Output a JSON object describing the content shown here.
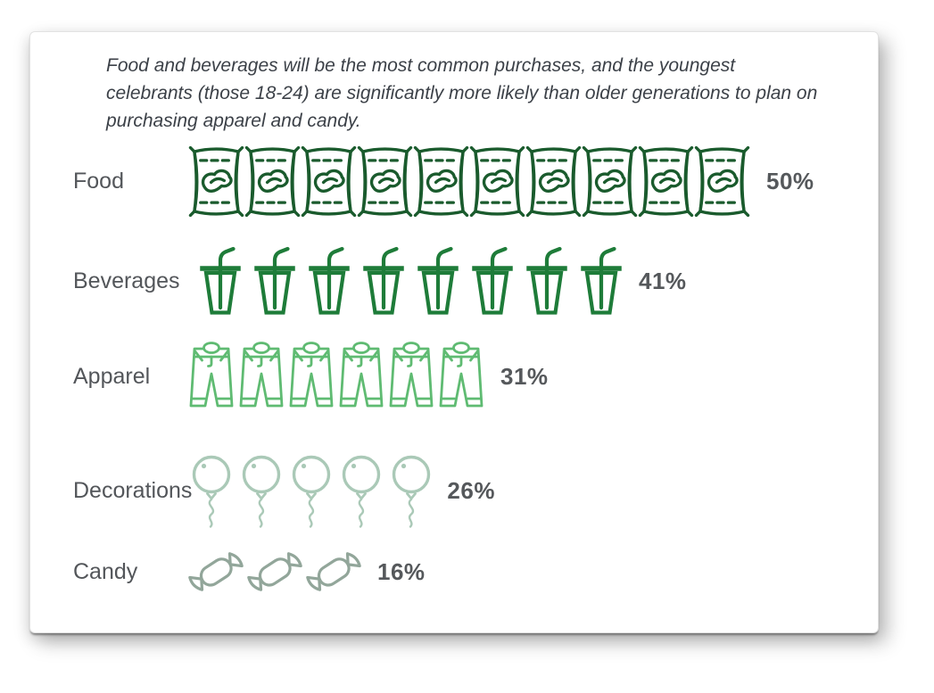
{
  "chart_data": {
    "type": "bar",
    "subtype": "pictograph",
    "title": "Food and beverages will be the most common purchases, and the youngest celebrants (those 18-24) are significantly more likely than older generations to plan on purchasing apparel and candy.",
    "categories": [
      "Food",
      "Beverages",
      "Apparel",
      "Decorations",
      "Candy"
    ],
    "values": [
      50,
      41,
      31,
      26,
      16
    ],
    "unit": "%",
    "icons_per_category": [
      10,
      8,
      6,
      5,
      3
    ],
    "icon_types": [
      "chip-bag",
      "drink-cup",
      "pants",
      "balloon",
      "candy"
    ],
    "icon_colors": [
      "#1a5b2d",
      "#1e7c39",
      "#5fbb72",
      "#aac9b7",
      "#92a69a"
    ],
    "legend_position": "none",
    "grid": false
  },
  "title": {
    "lines": [
      "Food and beverages will be the most common purchases, and the youngest",
      "celebrants (those 18-24) are significantly more likely than older generations to plan on",
      "purchasing apparel and candy."
    ]
  },
  "rows": [
    {
      "label": "Food",
      "percent": "50%",
      "icon": "chip-bag",
      "icon_count": 10,
      "color": "#1a5b2d"
    },
    {
      "label": "Beverages",
      "percent": "41%",
      "icon": "drink-cup",
      "icon_count": 8,
      "color": "#1e7c39"
    },
    {
      "label": "Apparel",
      "percent": "31%",
      "icon": "pants",
      "icon_count": 6,
      "color": "#5fbb72"
    },
    {
      "label": "Decorations",
      "percent": "26%",
      "icon": "balloon",
      "icon_count": 5,
      "color": "#aac9b7"
    },
    {
      "label": "Candy",
      "percent": "16%",
      "icon": "candy",
      "icon_count": 3,
      "color": "#92a69a"
    }
  ]
}
